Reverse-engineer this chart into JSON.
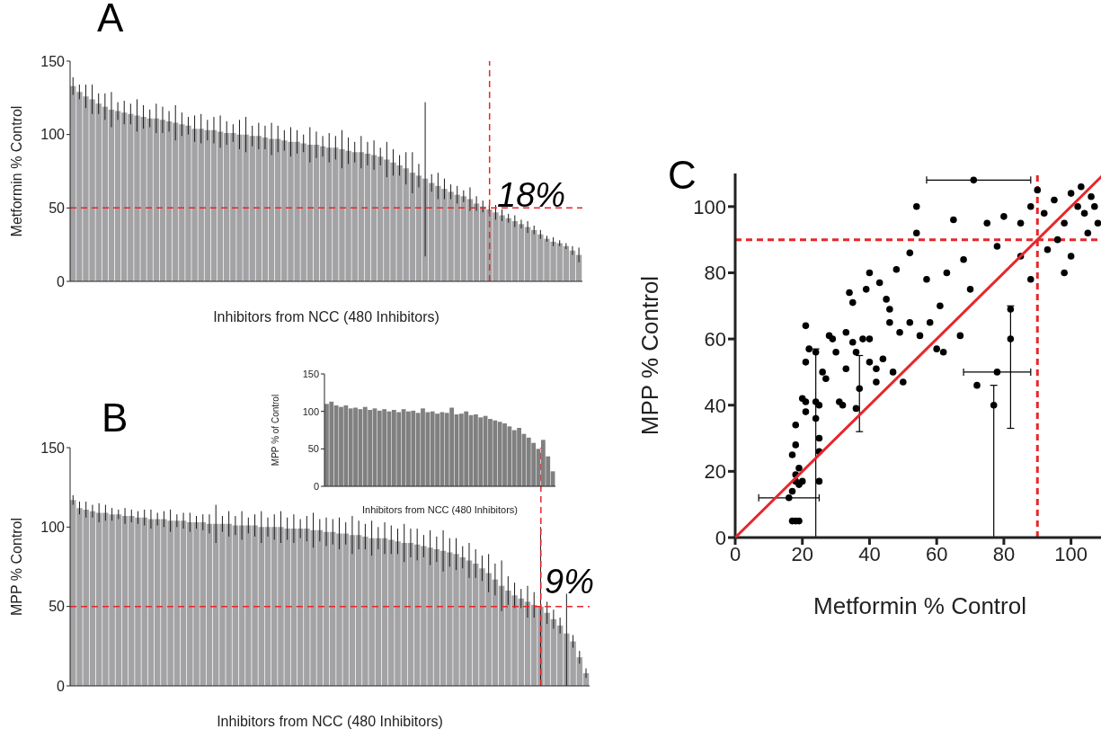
{
  "chart_data": [
    {
      "type": "bar",
      "title": "A",
      "xlabel": "Inhibitors from NCC (480 Inhibitors)",
      "ylabel": "Metformin % Control",
      "color": "#a3a3a5",
      "ylim": [
        0,
        150
      ],
      "yticks": [
        0,
        50,
        100,
        150
      ],
      "categories": [
        null,
        null,
        null,
        null,
        null,
        null,
        null,
        null,
        null,
        null,
        null,
        null,
        null,
        null,
        null,
        null,
        null,
        null,
        null,
        null,
        null,
        null,
        null,
        null,
        null,
        null,
        null,
        null,
        null,
        null,
        null,
        null,
        null,
        null,
        null,
        null,
        null,
        null,
        null,
        null,
        null,
        null,
        null,
        null,
        null,
        null,
        null,
        null,
        null,
        null,
        null,
        null,
        null,
        null,
        null,
        null,
        null,
        null,
        null,
        null,
        null,
        null,
        null,
        null,
        null,
        null,
        null,
        null,
        null,
        null,
        null,
        null,
        null,
        null,
        null,
        null,
        null,
        null,
        null,
        null
      ],
      "values": [
        133,
        129,
        126,
        124,
        121,
        119,
        117,
        116,
        115,
        114,
        113,
        112,
        111,
        111,
        110,
        109,
        108,
        107,
        106,
        104,
        104,
        103,
        103,
        102,
        101,
        101,
        100,
        100,
        99,
        99,
        98,
        97,
        97,
        96,
        95,
        95,
        94,
        93,
        93,
        92,
        91,
        91,
        90,
        89,
        88,
        88,
        87,
        86,
        85,
        83,
        81,
        79,
        77,
        74,
        72,
        70,
        67,
        65,
        63,
        61,
        59,
        58,
        56,
        53,
        51,
        49,
        47,
        45,
        43,
        41,
        39,
        37,
        35,
        32,
        29,
        27,
        26,
        24,
        21,
        18
      ],
      "errors": [
        6,
        5,
        8,
        10,
        7,
        9,
        12,
        6,
        8,
        7,
        11,
        8,
        6,
        10,
        9,
        7,
        12,
        8,
        6,
        9,
        10,
        7,
        9,
        11,
        8,
        6,
        10,
        12,
        7,
        9,
        8,
        11,
        9,
        7,
        10,
        8,
        6,
        12,
        9,
        7,
        10,
        8,
        13,
        9,
        7,
        11,
        8,
        10,
        6,
        12,
        9,
        7,
        11,
        14,
        8,
        [
          17,
          122
        ],
        6,
        9,
        7,
        5,
        6,
        4,
        8,
        5,
        4,
        3,
        5,
        4,
        3,
        4,
        3,
        4,
        3,
        3,
        2,
        3,
        2,
        2,
        3,
        5
      ],
      "ref_lines": [
        {
          "axis": "y",
          "value": 50,
          "color": "#e8262a",
          "line_style": "dashed"
        }
      ],
      "annotations": [
        "18%"
      ]
    },
    {
      "type": "bar",
      "title": "B",
      "xlabel": "Inhibitors from NCC (480 Inhibitors)",
      "ylabel": "MPP % Control",
      "color": "#a3a3a5",
      "ylim": [
        0,
        150
      ],
      "yticks": [
        0,
        50,
        100,
        150
      ],
      "categories": [
        null,
        null,
        null,
        null,
        null,
        null,
        null,
        null,
        null,
        null,
        null,
        null,
        null,
        null,
        null,
        null,
        null,
        null,
        null,
        null,
        null,
        null,
        null,
        null,
        null,
        null,
        null,
        null,
        null,
        null,
        null,
        null,
        null,
        null,
        null,
        null,
        null,
        null,
        null,
        null,
        null,
        null,
        null,
        null,
        null,
        null,
        null,
        null,
        null,
        null,
        null,
        null,
        null,
        null,
        null,
        null,
        null,
        null,
        null,
        null,
        null,
        null,
        null,
        null,
        null,
        null,
        null,
        null,
        null,
        null,
        null,
        null,
        null,
        null,
        null,
        null,
        null,
        null,
        null,
        null
      ],
      "values": [
        117,
        112,
        111,
        110,
        109,
        109,
        108,
        108,
        107,
        107,
        106,
        106,
        105,
        105,
        105,
        104,
        104,
        104,
        103,
        103,
        103,
        102,
        102,
        102,
        102,
        101,
        101,
        101,
        101,
        100,
        100,
        100,
        100,
        99,
        99,
        99,
        99,
        98,
        98,
        97,
        97,
        96,
        96,
        95,
        95,
        94,
        93,
        93,
        93,
        92,
        91,
        90,
        90,
        89,
        88,
        87,
        86,
        85,
        84,
        83,
        81,
        79,
        77,
        74,
        71,
        67,
        63,
        60,
        57,
        55,
        53,
        51,
        50,
        46,
        42,
        38,
        33,
        28,
        18,
        8
      ],
      "errors": [
        3,
        4,
        5,
        4,
        6,
        5,
        4,
        3,
        5,
        4,
        4,
        5,
        6,
        4,
        5,
        7,
        4,
        5,
        6,
        4,
        5,
        6,
        12,
        5,
        8,
        6,
        9,
        5,
        7,
        10,
        6,
        8,
        10,
        7,
        9,
        6,
        8,
        11,
        7,
        9,
        8,
        10,
        7,
        12,
        9,
        8,
        11,
        7,
        10,
        9,
        8,
        12,
        9,
        10,
        7,
        11,
        8,
        13,
        9,
        10,
        7,
        11,
        9,
        8,
        12,
        10,
        16,
        9,
        8,
        6,
        10,
        8,
        [
          0,
          100
        ],
        7,
        6,
        5,
        [
          0,
          58
        ],
        4,
        4,
        3
      ],
      "ref_lines": [
        {
          "axis": "y",
          "value": 50,
          "color": "#e8262a",
          "line_style": "dashed"
        }
      ],
      "annotations": [
        "9%"
      ]
    },
    {
      "type": "bar",
      "xlabel": "Inhibitors from NCC (480 Inhibitors)",
      "ylabel": "MPP % of Control",
      "color": "#808080",
      "ylim": [
        0,
        150
      ],
      "yticks": [
        0,
        50,
        100,
        150
      ],
      "categories": [
        null,
        null,
        null,
        null,
        null,
        null,
        null,
        null,
        null,
        null,
        null,
        null,
        null,
        null,
        null,
        null,
        null,
        null,
        null,
        null,
        null,
        null,
        null,
        null,
        null,
        null,
        null,
        null,
        null,
        null,
        null,
        null,
        null,
        null,
        null,
        null,
        null,
        null,
        null,
        null,
        null,
        null,
        null,
        null,
        null,
        null,
        null,
        null
      ],
      "values": [
        110,
        113,
        108,
        106,
        108,
        104,
        105,
        103,
        106,
        102,
        104,
        101,
        103,
        100,
        102,
        99,
        103,
        100,
        101,
        98,
        104,
        99,
        100,
        97,
        99,
        98,
        105,
        96,
        97,
        100,
        95,
        96,
        92,
        94,
        90,
        88,
        86,
        84,
        80,
        75,
        78,
        70,
        65,
        58,
        50,
        62,
        40,
        20
      ]
    },
    {
      "type": "scatter",
      "title": "C",
      "xlabel": "Metformin % Control",
      "ylabel": "MPP % Control",
      "xlim": [
        0,
        110
      ],
      "ylim": [
        0,
        110
      ],
      "xticks": [
        0,
        20,
        40,
        60,
        80,
        100
      ],
      "yticks": [
        0,
        20,
        40,
        60,
        80,
        100
      ],
      "marker": "circle",
      "series": [
        {
          "type": "scatter",
          "color": "#000000",
          "x": [
            17,
            18,
            19,
            16,
            17,
            18,
            19,
            20,
            18,
            19,
            17,
            18,
            18,
            20,
            21,
            21,
            21,
            21,
            22,
            24,
            24,
            25,
            24,
            25,
            25,
            25,
            26,
            27,
            28,
            29,
            30,
            31,
            32,
            33,
            33,
            34,
            35,
            35,
            36,
            36,
            37,
            38,
            39,
            40,
            40,
            40,
            42,
            42,
            43,
            44,
            45,
            46,
            46,
            47,
            48,
            49,
            50,
            52,
            52,
            54,
            54,
            55,
            57,
            58,
            60,
            61,
            62,
            63,
            65,
            67,
            68,
            70,
            71,
            72,
            75,
            77,
            78,
            78,
            80,
            82,
            82,
            85,
            88,
            90,
            92,
            95,
            98,
            100,
            102,
            104,
            106,
            108,
            96,
            93,
            100,
            105,
            85,
            88,
            98,
            103,
            107
          ],
          "values": [
            5,
            5,
            5,
            12,
            14,
            17,
            16,
            17,
            19,
            21,
            25,
            28,
            34,
            42,
            41,
            38,
            53,
            64,
            57,
            56,
            41,
            40,
            36,
            30,
            26,
            17,
            50,
            48,
            61,
            60,
            56,
            41,
            40,
            51,
            62,
            74,
            71,
            59,
            56,
            39,
            45,
            60,
            75,
            80,
            60,
            53,
            47,
            51,
            77,
            54,
            72,
            69,
            65,
            50,
            81,
            62,
            47,
            65,
            86,
            92,
            100,
            61,
            78,
            65,
            57,
            70,
            56,
            80,
            96,
            61,
            84,
            75,
            108,
            46,
            95,
            40,
            50,
            88,
            97,
            60,
            69,
            95,
            100,
            105,
            98,
            102,
            95,
            104,
            100,
            98,
            103,
            95,
            90,
            87,
            85,
            92,
            85,
            78,
            80,
            106,
            100
          ],
          "xerrors": [
            null,
            null,
            null,
            [
              7,
              25
            ],
            null,
            null,
            null,
            null,
            null,
            null,
            null,
            null,
            null,
            null,
            null,
            null,
            null,
            null,
            null,
            null,
            null,
            null,
            null,
            null,
            null,
            null,
            null,
            null,
            null,
            null,
            null,
            null,
            null,
            null,
            null,
            null,
            null,
            null,
            null,
            null,
            null,
            null,
            null,
            null,
            null,
            null,
            null,
            null,
            null,
            null,
            null,
            null,
            null,
            null,
            null,
            null,
            null,
            null,
            null,
            null,
            null,
            null,
            null,
            null,
            null,
            null,
            null,
            null,
            null,
            null,
            null,
            null,
            [
              57,
              88
            ],
            null,
            null,
            null,
            [
              68,
              88
            ],
            null,
            null,
            null,
            null,
            null,
            null,
            null,
            null,
            null,
            null,
            null,
            null,
            null,
            null,
            null,
            null,
            null,
            null,
            null,
            null,
            null,
            null,
            null,
            null
          ],
          "errors": [
            null,
            null,
            null,
            null,
            null,
            null,
            null,
            null,
            null,
            null,
            null,
            null,
            null,
            null,
            null,
            null,
            null,
            null,
            null,
            null,
            [
              0,
              57
            ],
            null,
            null,
            null,
            null,
            null,
            null,
            null,
            null,
            null,
            null,
            null,
            null,
            null,
            null,
            null,
            null,
            null,
            null,
            null,
            [
              32,
              55
            ],
            null,
            null,
            null,
            null,
            null,
            null,
            null,
            null,
            null,
            null,
            null,
            null,
            null,
            null,
            null,
            null,
            null,
            null,
            null,
            null,
            null,
            null,
            null,
            null,
            null,
            null,
            null,
            null,
            null,
            null,
            null,
            null,
            null,
            null,
            [
              0,
              46
            ],
            null,
            null,
            null,
            [
              33,
              70
            ],
            null,
            null,
            null,
            null,
            null,
            null,
            null,
            null,
            null,
            null,
            null,
            null,
            null,
            null,
            null,
            null,
            null,
            null,
            null,
            null,
            null
          ]
        },
        {
          "type": "line",
          "color": "#e8262a",
          "marker": "none",
          "x": [
            0,
            110
          ],
          "values": [
            0,
            110
          ]
        }
      ],
      "ref_lines": [
        {
          "axis": "x",
          "value": 90,
          "color": "#e8262a",
          "line_style": "dashed"
        },
        {
          "axis": "y",
          "value": 90,
          "color": "#e8262a",
          "line_style": "dashed"
        }
      ]
    }
  ]
}
